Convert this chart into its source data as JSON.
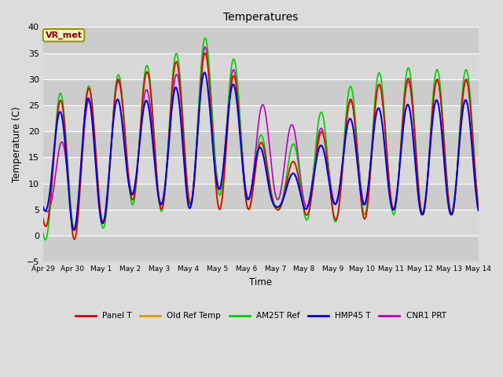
{
  "title": "Temperatures",
  "xlabel": "Time",
  "ylabel": "Temperature (C)",
  "ylim": [
    -5,
    40
  ],
  "fig_bg": "#dcdcdc",
  "plot_bg": "#dcdcdc",
  "annotation_text": "VR_met",
  "annotation_color": "#8B0000",
  "annotation_bg": "#f5f0c0",
  "annotation_border": "#999900",
  "legend_labels": [
    "Panel T",
    "Old Ref Temp",
    "AM25T Ref",
    "HMP45 T",
    "CNR1 PRT"
  ],
  "legend_colors": [
    "#dd0000",
    "#dd9900",
    "#00cc00",
    "#0000dd",
    "#bb00bb"
  ],
  "tick_labels": [
    "Apr 29",
    "Apr 30",
    "May 1",
    "May 2",
    "May 3",
    "May 4",
    "May 5",
    "May 6",
    "May 7",
    "May 8",
    "May 9",
    "May 10",
    "May 11",
    "May 12",
    "May 13",
    "May 14"
  ],
  "yticks": [
    -5,
    0,
    5,
    10,
    15,
    20,
    25,
    30,
    35,
    40
  ],
  "grid_color": "#ffffff",
  "band_color": "#cccccc",
  "band_color2": "#d8d8d8"
}
